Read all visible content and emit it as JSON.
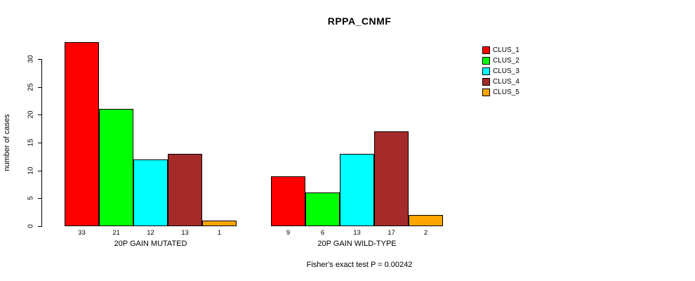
{
  "chart_data": {
    "type": "bar",
    "title": "RPPA_CNMF",
    "ylabel": "number of cases",
    "xlabel": "",
    "annotation": "Fisher's exact test P = 0.00242",
    "categories": [
      "20P GAIN MUTATED",
      "20P GAIN WILD-TYPE"
    ],
    "series": [
      {
        "name": "CLUS_1",
        "color": "#FF0000",
        "values": [
          33,
          9
        ]
      },
      {
        "name": "CLUS_2",
        "color": "#00FF00",
        "values": [
          21,
          6
        ]
      },
      {
        "name": "CLUS_3",
        "color": "#00FFFF",
        "values": [
          12,
          13
        ]
      },
      {
        "name": "CLUS_4",
        "color": "#A52A2A",
        "values": [
          13,
          17
        ]
      },
      {
        "name": "CLUS_5",
        "color": "#FFA500",
        "values": [
          1,
          2
        ]
      }
    ],
    "ylim": [
      0,
      30
    ],
    "yticks": [
      0,
      5,
      10,
      15,
      20,
      25,
      30
    ],
    "bar_value_labels": true,
    "grid": false,
    "legend_position": "top-right-outside"
  }
}
